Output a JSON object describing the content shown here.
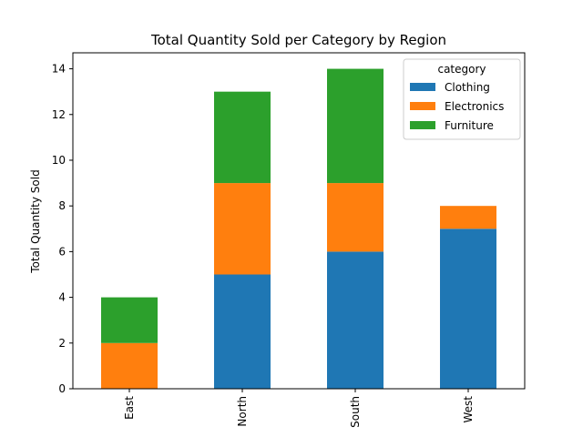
{
  "chart_data": {
    "type": "bar",
    "stacked": true,
    "title": "Total Quantity Sold per Category by Region",
    "xlabel": "",
    "ylabel": "Total Quantity Sold",
    "categories": [
      "East",
      "North",
      "South",
      "West"
    ],
    "series": [
      {
        "name": "Clothing",
        "values": [
          0,
          5,
          6,
          7
        ],
        "color": "#1f77b4"
      },
      {
        "name": "Electronics",
        "values": [
          2,
          4,
          3,
          1
        ],
        "color": "#ff7f0e"
      },
      {
        "name": "Furniture",
        "values": [
          2,
          4,
          5,
          0
        ],
        "color": "#2ca02c"
      }
    ],
    "ylim": [
      0,
      14.7
    ],
    "yticks": [
      0,
      2,
      4,
      6,
      8,
      10,
      12,
      14
    ],
    "grid": false,
    "legend": {
      "title": "category",
      "placement": "top-right"
    }
  }
}
